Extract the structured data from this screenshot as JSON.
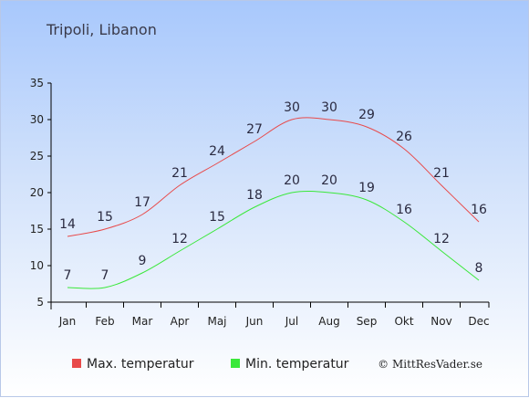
{
  "chart_data": {
    "type": "line",
    "title": "Tripoli, Libanon",
    "xlabel": "",
    "ylabel": "",
    "categories": [
      "Jan",
      "Feb",
      "Mar",
      "Apr",
      "Maj",
      "Jun",
      "Jul",
      "Aug",
      "Sep",
      "Okt",
      "Nov",
      "Dec"
    ],
    "ylim": [
      5,
      35
    ],
    "yticks": [
      5,
      10,
      15,
      20,
      25,
      30,
      35
    ],
    "grid": false,
    "legend_position": "bottom",
    "series": [
      {
        "name": "Max. temperatur",
        "color": "#e84a4a",
        "values": [
          14,
          15,
          17,
          21,
          24,
          27,
          30,
          30,
          29,
          26,
          21,
          16
        ]
      },
      {
        "name": "Min. temperatur",
        "color": "#3ae83a",
        "values": [
          7,
          7,
          9,
          12,
          15,
          18,
          20,
          20,
          19,
          16,
          12,
          8
        ]
      }
    ]
  },
  "credit": "© MittResVader.se"
}
